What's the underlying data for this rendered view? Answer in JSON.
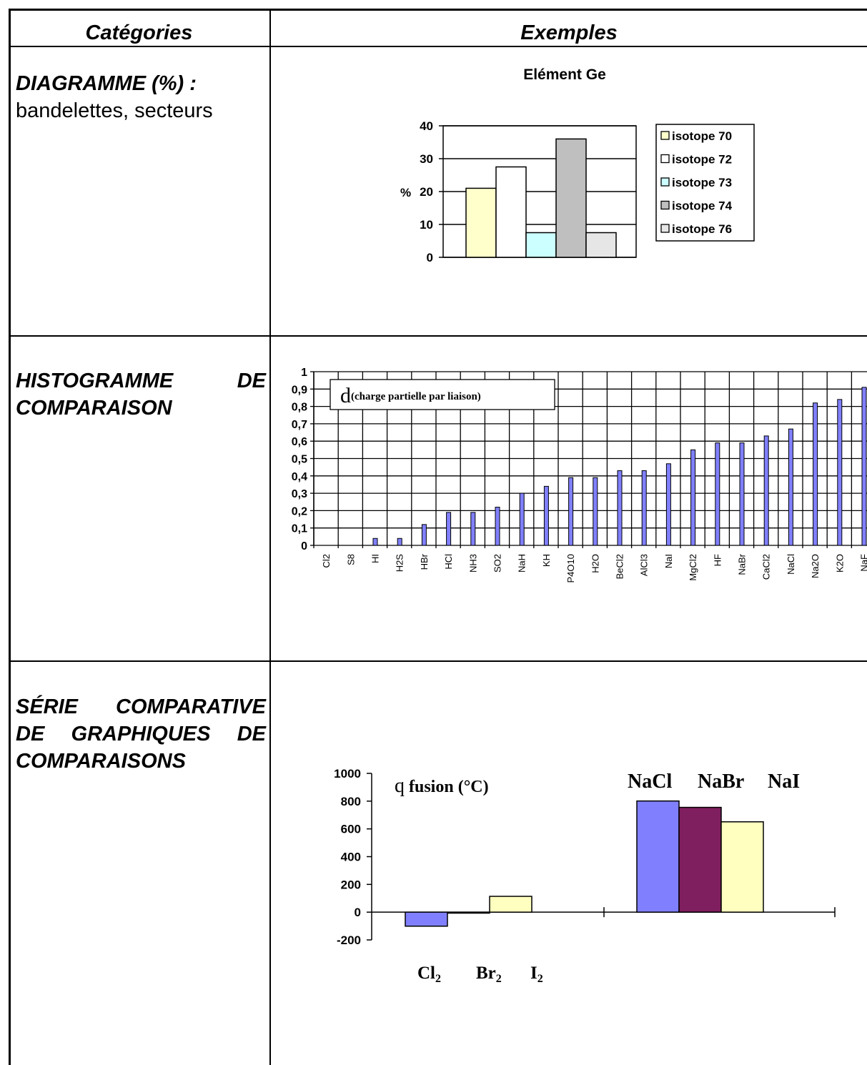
{
  "table": {
    "header_categories": "Catégories",
    "header_examples": "Exemples",
    "rows": [
      {
        "title": "DIAGRAMME (%) :",
        "subtitle": "bandelettes, secteurs"
      },
      {
        "title_line1": "HISTOGRAMME DE",
        "title_line2": "COMPARAISON"
      },
      {
        "title_line1": "SÉRIE COMPARATIVE",
        "title_line2": "DE GRAPHIQUES DE",
        "title_line3": "COMPARAISONS"
      }
    ]
  },
  "chart_data": [
    {
      "type": "bar",
      "title": "Elément Ge",
      "ylabel": "%",
      "ylim": [
        0,
        40
      ],
      "yticks": [
        "0",
        "10",
        "20",
        "30",
        "40"
      ],
      "series": [
        {
          "name": "isotope 70",
          "values": [
            21
          ],
          "color": "#ffffcc"
        },
        {
          "name": "isotope 72",
          "values": [
            27.5
          ],
          "color": "#ffffff"
        },
        {
          "name": "isotope 73",
          "values": [
            7.5
          ],
          "color": "#ccffff"
        },
        {
          "name": "isotope 74",
          "values": [
            36
          ],
          "color": "#bfbfbf"
        },
        {
          "name": "isotope 76",
          "values": [
            7.5
          ],
          "color": "#e6e6e6"
        }
      ],
      "legend_position": "right",
      "grid": true
    },
    {
      "type": "bar",
      "title_symbol": "d",
      "title_text": "(charge partielle par liaison)",
      "ylim": [
        0,
        1
      ],
      "yticks": [
        "0",
        "0,1",
        "0,2",
        "0,3",
        "0,4",
        "0,5",
        "0,6",
        "0,7",
        "0,8",
        "0,9",
        "1"
      ],
      "categories": [
        "Cl2",
        "S8",
        "HI",
        "H2S",
        "HBr",
        "HCl",
        "NH3",
        "SO2",
        "NaH",
        "KH",
        "P4O10",
        "H2O",
        "BeCl2",
        "AlCl3",
        "NaI",
        "MgCl2",
        "HF",
        "NaBr",
        "CaCl2",
        "NaCl",
        "Na2O",
        "K2O",
        "NaF"
      ],
      "values": [
        0,
        0,
        0.04,
        0.04,
        0.12,
        0.19,
        0.19,
        0.22,
        0.3,
        0.34,
        0.39,
        0.39,
        0.43,
        0.43,
        0.47,
        0.55,
        0.59,
        0.59,
        0.63,
        0.67,
        0.82,
        0.84,
        0.91
      ],
      "color": "#8080ff",
      "grid": true
    },
    {
      "type": "bar",
      "title_symbol": "q",
      "title_text": " fusion (°C)",
      "ylim": [
        -200,
        1000
      ],
      "yticks": [
        "-200",
        "0",
        "200",
        "400",
        "600",
        "800",
        "1000"
      ],
      "groups": [
        {
          "labels": [
            {
              "base": "Cl",
              "sub": "2"
            },
            {
              "base": "Br",
              "sub": "2"
            },
            {
              "base": "I",
              "sub": "2"
            }
          ],
          "values": [
            -101,
            -7,
            114
          ],
          "colors": [
            "#8080ff",
            "#7f1f5f",
            "#ffffc0"
          ]
        },
        {
          "labels": [
            {
              "base": "NaCl",
              "sub": ""
            },
            {
              "base": "NaBr",
              "sub": ""
            },
            {
              "base": "NaI",
              "sub": ""
            }
          ],
          "values": [
            801,
            755,
            651
          ],
          "colors": [
            "#8080ff",
            "#7f1f5f",
            "#ffffc0"
          ]
        }
      ]
    }
  ]
}
